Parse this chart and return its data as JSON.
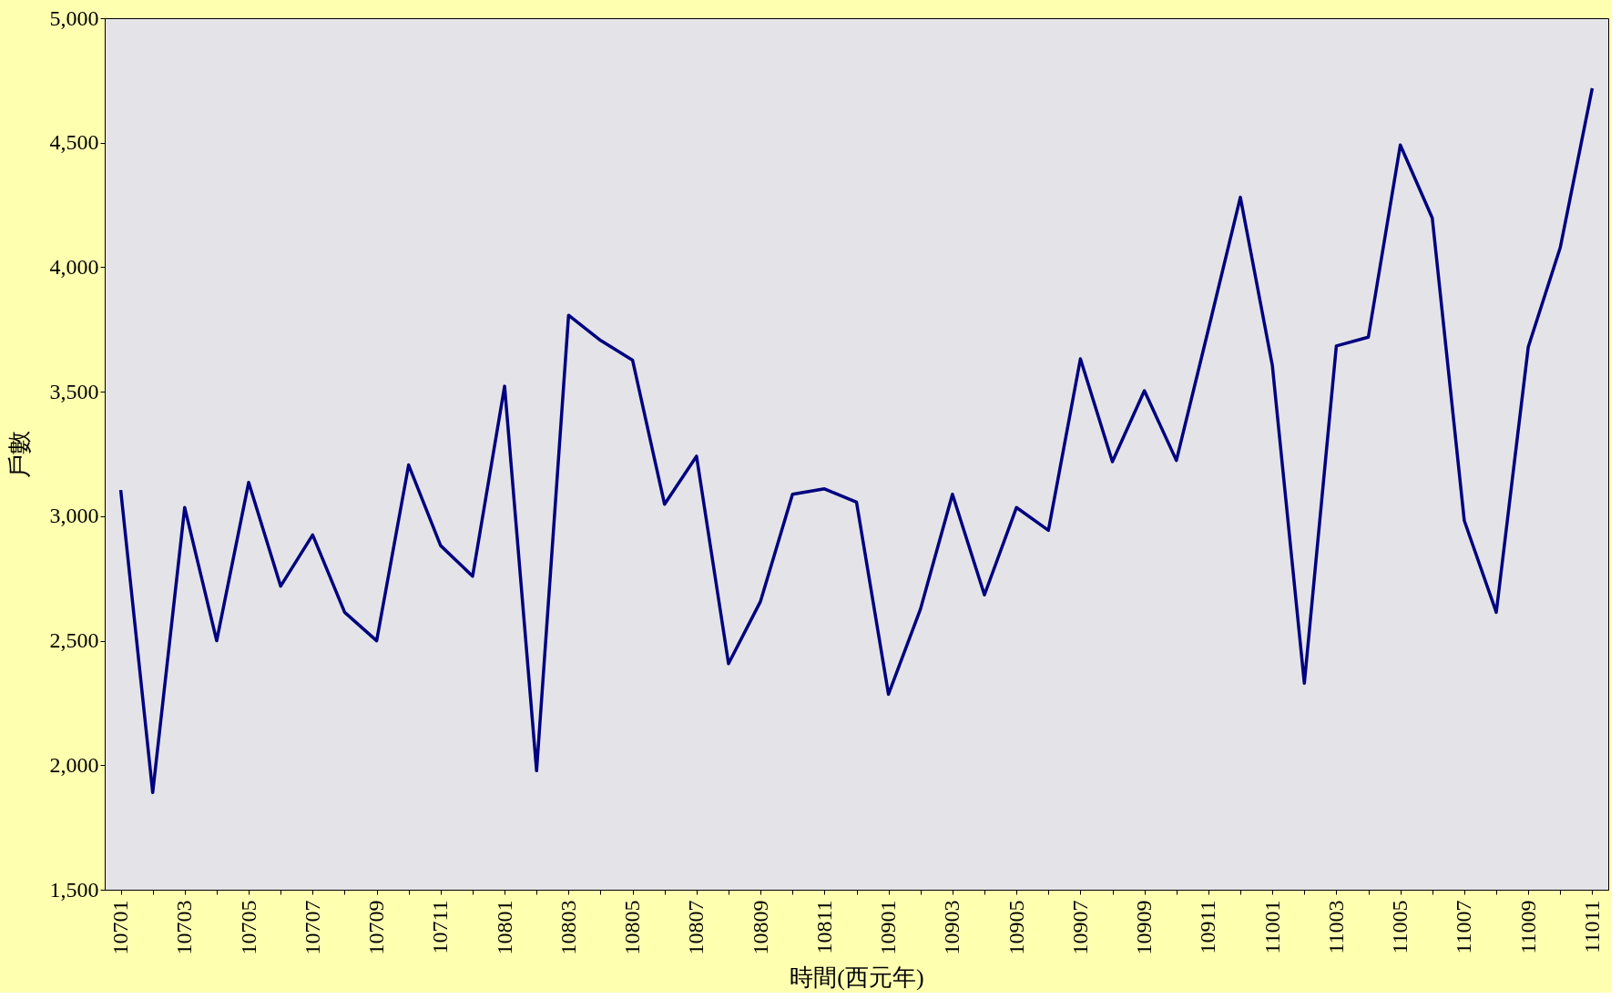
{
  "chart_data": {
    "type": "line",
    "xlabel": "時間(西元年)",
    "ylabel": "戶數",
    "categories": [
      "10701",
      null,
      "10703",
      null,
      "10705",
      null,
      "10707",
      null,
      "10709",
      null,
      "10711",
      null,
      "10801",
      null,
      "10803",
      null,
      "10805",
      null,
      "10807",
      null,
      "10809",
      null,
      "10811",
      null,
      "10901",
      null,
      "10903",
      null,
      "10905",
      null,
      "10907",
      null,
      "10909",
      null,
      "10911",
      null,
      "11001",
      null,
      "11003",
      null,
      "11005",
      null,
      "11007",
      null,
      "11009",
      null,
      "11011"
    ],
    "series": [
      {
        "color": "#000080",
        "values": [
          3105,
          1890,
          3035,
          2500,
          3136,
          2719,
          2925,
          2614,
          2500,
          3206,
          2882,
          2759,
          3522,
          1978,
          3807,
          3706,
          3627,
          3048,
          3241,
          2408,
          2658,
          3088,
          3110,
          3057,
          2285,
          2627,
          3088,
          2684,
          3035,
          2943,
          3632,
          3219,
          3504,
          3224,
          3750,
          4281,
          3605,
          2329,
          3684,
          3719,
          4491,
          4197,
          2982,
          2614,
          3680,
          4079,
          4719
        ]
      }
    ],
    "ylim": [
      1500,
      5000
    ],
    "yticks": [
      {
        "value": 1500,
        "label": "1,500"
      },
      {
        "value": 2000,
        "label": "2,000"
      },
      {
        "value": 2500,
        "label": "2,500"
      },
      {
        "value": 3000,
        "label": "3,000"
      },
      {
        "value": 3500,
        "label": "3,500"
      },
      {
        "value": 4000,
        "label": "4,000"
      },
      {
        "value": 4500,
        "label": "4,500"
      },
      {
        "value": 5000,
        "label": "5,000"
      }
    ],
    "grid": false,
    "marker": "none",
    "line_style": "solid"
  }
}
